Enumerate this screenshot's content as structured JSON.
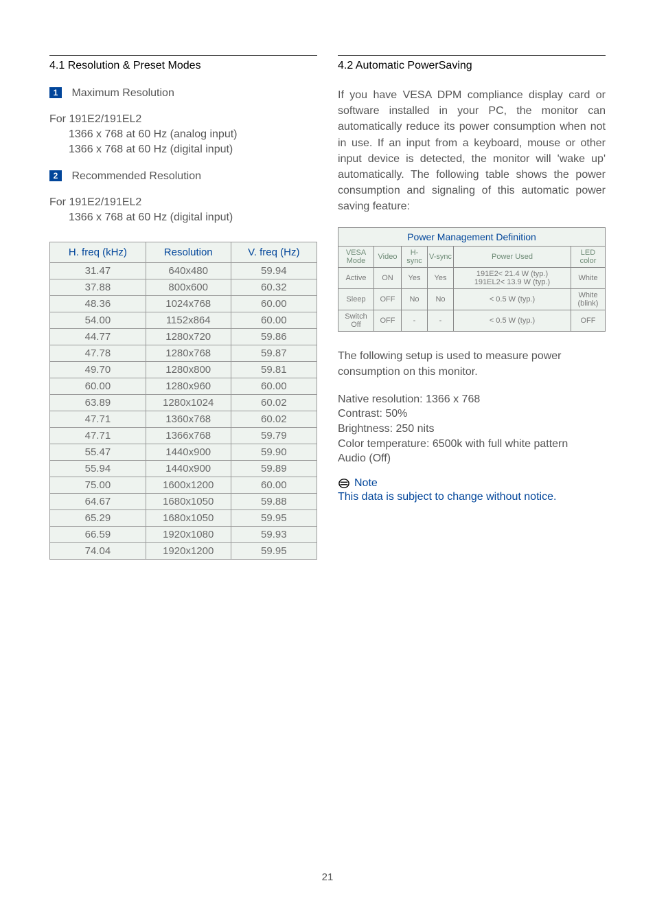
{
  "left": {
    "section_title": "4.1 Resolution & Preset Modes",
    "item1_num": "1",
    "item1_label": "Maximum Resolution",
    "model_line": "For 191E2/191EL2",
    "item1_sub1": "1366 x 768 at 60 Hz (analog input)",
    "item1_sub2": "1366 x 768 at 60 Hz (digital input)",
    "item2_num": "2",
    "item2_label": "Recommended Resolution",
    "item2_sub1": "1366 x 768 at 60 Hz (digital input)",
    "table": {
      "columns": [
        "H. freq (kHz)",
        "Resolution",
        "V. freq (Hz)"
      ],
      "rows": [
        [
          "31.47",
          "640x480",
          "59.94"
        ],
        [
          "37.88",
          "800x600",
          "60.32"
        ],
        [
          "48.36",
          "1024x768",
          "60.00"
        ],
        [
          "54.00",
          "1152x864",
          "60.00"
        ],
        [
          "44.77",
          "1280x720",
          "59.86"
        ],
        [
          "47.78",
          "1280x768",
          "59.87"
        ],
        [
          "49.70",
          "1280x800",
          "59.81"
        ],
        [
          "60.00",
          "1280x960",
          "60.00"
        ],
        [
          "63.89",
          "1280x1024",
          "60.02"
        ],
        [
          "47.71",
          "1360x768",
          "60.02"
        ],
        [
          "47.71",
          "1366x768",
          "59.79"
        ],
        [
          "55.47",
          "1440x900",
          "59.90"
        ],
        [
          "55.94",
          "1440x900",
          "59.89"
        ],
        [
          "75.00",
          "1600x1200",
          "60.00"
        ],
        [
          "64.67",
          "1680x1050",
          "59.88"
        ],
        [
          "65.29",
          "1680x1050",
          "59.95"
        ],
        [
          "66.59",
          "1920x1080",
          "59.93"
        ],
        [
          "74.04",
          "1920x1200",
          "59.95"
        ]
      ]
    }
  },
  "right": {
    "section_title": "4.2 Automatic PowerSaving",
    "intro": "If you have VESA DPM compliance display card or software installed in your PC, the monitor can automatically reduce its power consumption when not in use. If an input from a keyboard, mouse or other input device is detected, the monitor will 'wake up' automatically. The following table shows the power consumption and signaling of this automatic power saving feature:",
    "pm_table": {
      "title": "Power Management Definition",
      "columns": [
        "VESA Mode",
        "Video",
        "H-sync",
        "V-sync",
        "Power Used",
        "LED color"
      ],
      "rows": [
        [
          "Active",
          "ON",
          "Yes",
          "Yes",
          "191E2< 21.4 W (typ.)\n191EL2< 13.9 W (typ.)",
          "White"
        ],
        [
          "Sleep",
          "OFF",
          "No",
          "No",
          "< 0.5 W (typ.)",
          "White (blink)"
        ],
        [
          "Switch Off",
          "OFF",
          "-",
          "-",
          "< 0.5 W (typ.)",
          "OFF"
        ]
      ]
    },
    "measure_intro": "The following setup is used to measure power consumption on this monitor.",
    "specs": [
      "Native resolution: 1366 x 768",
      "Contrast: 50%",
      "Brightness: 250 nits",
      "Color temperature: 6500k with full white pattern",
      "Audio (Off)"
    ],
    "note_label": "Note",
    "note_text": "This data is subject to change without notice."
  },
  "page_number": "21"
}
